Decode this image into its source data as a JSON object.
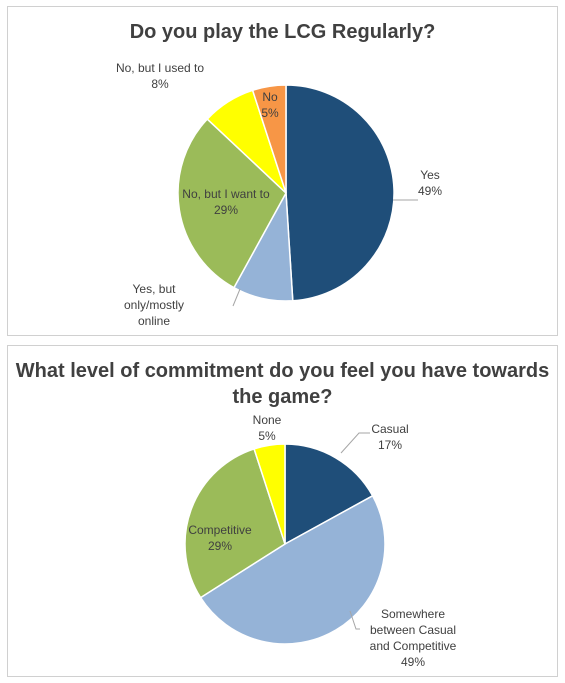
{
  "chart_data": [
    {
      "type": "pie",
      "title": "Do you play the LCG Regularly?",
      "categories": [
        "Yes",
        "Yes, but only/mostly online",
        "No, but I want to",
        "No, but I used to",
        "No"
      ],
      "values": [
        49,
        9,
        29,
        8,
        5
      ],
      "labels": [
        {
          "lines": [
            "Yes",
            "49%"
          ]
        },
        {
          "lines": [
            "Yes, but",
            "only/mostly",
            "online"
          ]
        },
        {
          "lines": [
            "No, but I want to",
            "29%"
          ]
        },
        {
          "lines": [
            "No, but I used to",
            "8%"
          ]
        },
        {
          "lines": [
            "No",
            "5%"
          ]
        }
      ],
      "colors": [
        "#1f4e79",
        "#95b3d7",
        "#9bbb59",
        "#ffff00",
        "#f79646"
      ],
      "start_angle_deg": 0,
      "direction": "clockwise",
      "legend": "none"
    },
    {
      "type": "pie",
      "title": "What level of commitment do you feel you have towards the game?",
      "categories": [
        "Casual",
        "Somewhere between Casual and Competitive",
        "Competitive",
        "None"
      ],
      "values": [
        17,
        49,
        29,
        5
      ],
      "labels": [
        {
          "lines": [
            "Casual",
            "17%"
          ]
        },
        {
          "lines": [
            "Somewhere",
            "between Casual",
            "and Competitive",
            "49%"
          ]
        },
        {
          "lines": [
            "Competitive",
            "29%"
          ]
        },
        {
          "lines": [
            "None",
            "5%"
          ]
        }
      ],
      "colors": [
        "#1f4e79",
        "#95b3d7",
        "#9bbb59",
        "#ffff00"
      ],
      "start_angle_deg": 0,
      "direction": "clockwise",
      "legend": "none"
    }
  ]
}
